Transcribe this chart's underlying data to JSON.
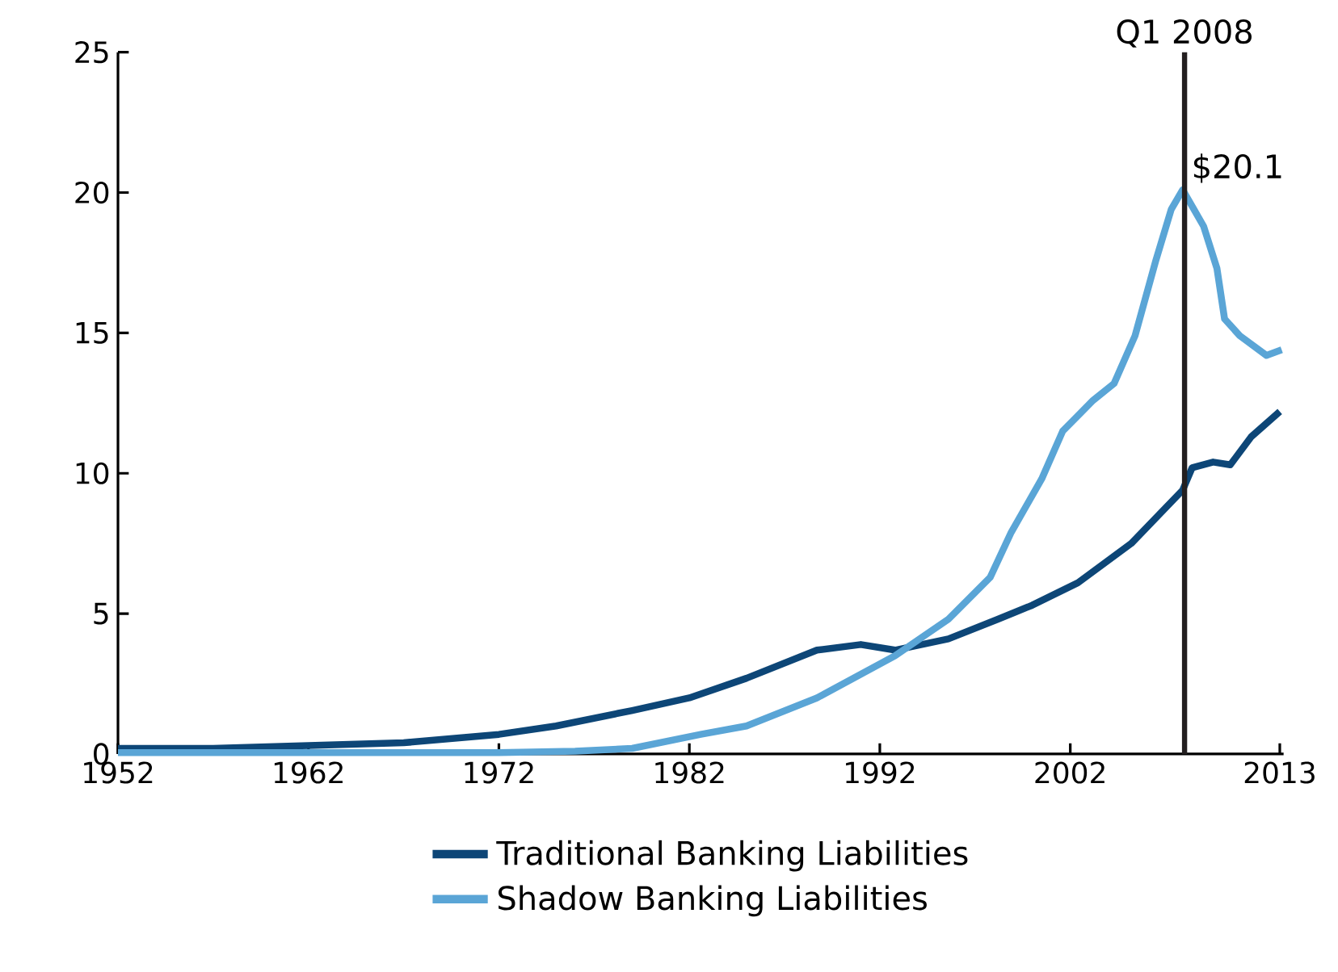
{
  "chart_data": {
    "type": "line",
    "x": [
      1952,
      1957,
      1962,
      1967,
      1972,
      1975,
      1979,
      1982,
      1985,
      1988.7,
      1991,
      1992.8,
      1995.6,
      1998.2,
      2000,
      2002.4,
      2005.2,
      2007.9,
      2008.4,
      2009.5,
      2010.4,
      2011.5,
      2013
    ],
    "series": [
      {
        "name": "Traditional Banking Liabilities",
        "color": "#0d4677",
        "values": [
          0.2,
          0.2,
          0.3,
          0.4,
          0.7,
          1.0,
          1.55,
          2.0,
          2.7,
          3.7,
          3.9,
          3.7,
          4.1,
          4.8,
          5.3,
          6.1,
          7.5,
          9.4,
          10.2,
          10.4,
          10.3,
          11.3,
          12.2
        ]
      },
      {
        "name": "Shadow Banking Liabilities",
        "color": "#5aa5d6",
        "x": [
          1952,
          1962,
          1972,
          1976,
          1979,
          1982.6,
          1985,
          1988.7,
          1992.8,
          1995.6,
          1997.8,
          1998.9,
          2000.5,
          2001.6,
          2003.2,
          2004.3,
          2005.4,
          2006.5,
          2007.3,
          2007.9,
          2009.0,
          2009.7,
          2010.1,
          2010.9,
          2012.3,
          2013.1
        ],
        "values": [
          0.05,
          0.05,
          0.05,
          0.1,
          0.2,
          0.7,
          1.0,
          2.0,
          3.5,
          4.8,
          6.3,
          7.9,
          9.8,
          11.5,
          12.6,
          13.2,
          14.9,
          17.6,
          19.4,
          20.1,
          18.8,
          17.3,
          15.5,
          14.9,
          14.2,
          14.4
        ]
      }
    ],
    "xlim": [
      1952,
      2013.2
    ],
    "ylim": [
      0,
      25
    ],
    "xticks": [
      1952,
      1962,
      1972,
      1982,
      1992,
      2002,
      2013
    ],
    "yticks": [
      0,
      5,
      10,
      15,
      20,
      25
    ],
    "ref_lines": [
      {
        "axis": "x",
        "value": 2008,
        "label": "Q1 2008",
        "color": "#231f20"
      }
    ],
    "annotations": [
      {
        "text": "$20.1",
        "x": 2008,
        "y": 20.1
      }
    ],
    "legend": "bottom",
    "grid": false
  }
}
